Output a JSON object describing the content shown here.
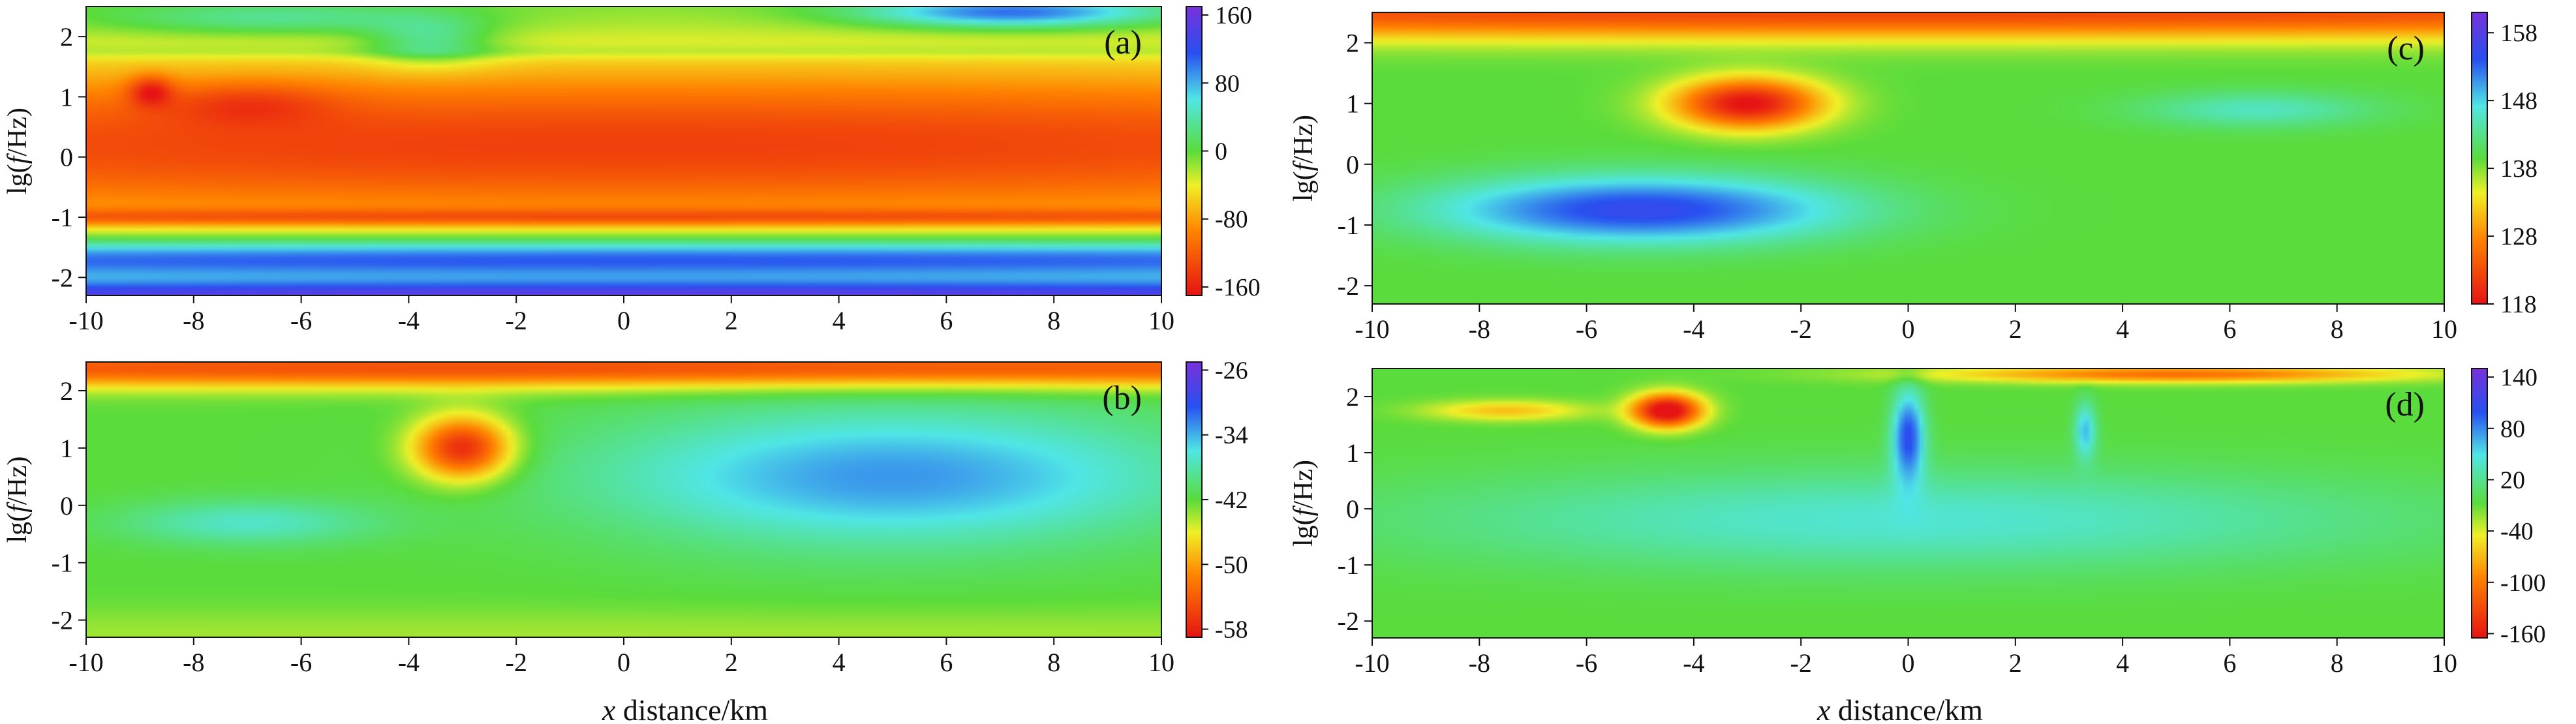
{
  "figure": {
    "xlabel_italic": "x",
    "xlabel_rest": " distance/km"
  },
  "chart_data": [
    {
      "type": "heatmap",
      "panel_label": "(a)",
      "ylabel": "lg(f/Hz)",
      "xlabel": "",
      "xlim": [
        -10,
        10
      ],
      "ylim": [
        -2.3,
        2.5
      ],
      "x_ticks": [
        -10,
        -8,
        -6,
        -4,
        -2,
        0,
        2,
        4,
        6,
        8,
        10
      ],
      "y_ticks": [
        -2,
        -1,
        0,
        1,
        2
      ],
      "grid": false,
      "colorbar": {
        "min": -170,
        "max": 170,
        "ticks": [
          160,
          80,
          0,
          -80,
          -160
        ]
      },
      "features": [
        {
          "x": 0,
          "y": 0.2,
          "sx": 40,
          "sy": 1.5,
          "v": -140
        },
        {
          "x": -7,
          "y": 0.9,
          "sx": 1.6,
          "sy": 0.35,
          "v": -40
        },
        {
          "x": -8.8,
          "y": 1.1,
          "sx": 0.4,
          "sy": 0.25,
          "v": -70
        },
        {
          "x": 0,
          "y": -1.7,
          "sx": 40,
          "sy": 0.35,
          "v": 140
        },
        {
          "x": 0,
          "y": -2.3,
          "sx": 40,
          "sy": 0.25,
          "v": 150
        },
        {
          "x": 0,
          "y": -1.0,
          "sx": 40,
          "sy": 0.14,
          "v": -60
        },
        {
          "x": -6.5,
          "y": 2.3,
          "sx": 3.3,
          "sy": 0.28,
          "v": 50
        },
        {
          "x": 7.2,
          "y": 2.4,
          "sx": 2.8,
          "sy": 0.25,
          "v": 120
        },
        {
          "x": -3.6,
          "y": 1.9,
          "sx": 1.2,
          "sy": 0.4,
          "v": 60
        },
        {
          "x": 0,
          "y": 1.75,
          "sx": 40,
          "sy": 0.12,
          "v": 20
        }
      ]
    },
    {
      "type": "heatmap",
      "panel_label": "(b)",
      "ylabel": "lg(f/Hz)",
      "xlabel": "x distance/km",
      "xlim": [
        -10,
        10
      ],
      "ylim": [
        -2.3,
        2.5
      ],
      "x_ticks": [
        -10,
        -8,
        -6,
        -4,
        -2,
        0,
        2,
        4,
        6,
        8,
        10
      ],
      "y_ticks": [
        -2,
        -1,
        0,
        1,
        2
      ],
      "grid": false,
      "colorbar": {
        "min": -59,
        "max": -25,
        "ticks": [
          -26,
          -34,
          -42,
          -50,
          -58
        ]
      },
      "features": [
        {
          "x": 5,
          "y": 0.5,
          "sx": 5.5,
          "sy": 1.2,
          "v": 9
        },
        {
          "x": -7,
          "y": -0.3,
          "sx": 2.4,
          "sy": 0.4,
          "v": 5
        },
        {
          "x": -3,
          "y": 1.0,
          "sx": 0.9,
          "sy": 0.55,
          "v": -16
        },
        {
          "x": 0,
          "y": 2.4,
          "sx": 40,
          "sy": 0.35,
          "v": -13
        },
        {
          "x": 0,
          "y": -2.3,
          "sx": 40,
          "sy": 0.5,
          "v": -2
        }
      ]
    },
    {
      "type": "heatmap",
      "panel_label": "(c)",
      "ylabel": "lg(f/Hz)",
      "xlabel": "",
      "xlim": [
        -10,
        10
      ],
      "ylim": [
        -2.3,
        2.5
      ],
      "x_ticks": [
        -10,
        -8,
        -6,
        -4,
        -2,
        0,
        2,
        4,
        6,
        8,
        10
      ],
      "y_ticks": [
        -2,
        -1,
        0,
        1,
        2
      ],
      "grid": false,
      "colorbar": {
        "min": 118,
        "max": 161,
        "ticks": [
          158,
          148,
          138,
          128,
          118
        ]
      },
      "features": [
        {
          "x": 0,
          "y": 2.5,
          "sx": 40,
          "sy": 0.45,
          "v": -17
        },
        {
          "x": -3,
          "y": 1.0,
          "sx": 1.4,
          "sy": 0.42,
          "v": -22
        },
        {
          "x": -5,
          "y": -0.75,
          "sx": 3.8,
          "sy": 0.55,
          "v": 16
        },
        {
          "x": 6.5,
          "y": 0.9,
          "sx": 2.2,
          "sy": 0.3,
          "v": 6
        }
      ]
    },
    {
      "type": "heatmap",
      "panel_label": "(d)",
      "ylabel": "lg(f/Hz)",
      "xlabel": "x distance/km",
      "xlim": [
        -10,
        10
      ],
      "ylim": [
        -2.3,
        2.5
      ],
      "x_ticks": [
        -10,
        -8,
        -6,
        -4,
        -2,
        0,
        2,
        4,
        6,
        8,
        10
      ],
      "y_ticks": [
        -2,
        -1,
        0,
        1,
        2
      ],
      "grid": false,
      "colorbar": {
        "min": -165,
        "max": 150,
        "ticks": [
          140,
          80,
          20,
          -40,
          -100,
          -160
        ]
      },
      "features": [
        {
          "x": 0,
          "y": -0.2,
          "sx": 9.5,
          "sy": 0.9,
          "v": 50
        },
        {
          "x": -4.5,
          "y": 1.75,
          "sx": 0.65,
          "sy": 0.3,
          "v": -180
        },
        {
          "x": -7.5,
          "y": 1.75,
          "sx": 1.5,
          "sy": 0.18,
          "v": -60
        },
        {
          "x": 0,
          "y": 1.3,
          "sx": 0.3,
          "sy": 0.8,
          "v": 110
        },
        {
          "x": 5,
          "y": 2.4,
          "sx": 4.5,
          "sy": 0.15,
          "v": -100
        },
        {
          "x": 3.3,
          "y": 1.4,
          "sx": 0.2,
          "sy": 0.5,
          "v": 70
        }
      ]
    }
  ]
}
